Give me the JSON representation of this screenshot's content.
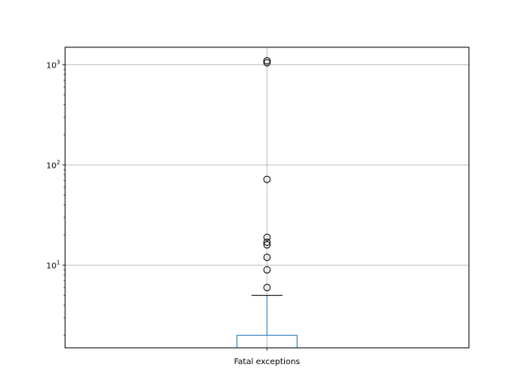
{
  "chart_data": {
    "type": "boxplot",
    "categories": [
      "Fatal exceptions"
    ],
    "yscale": "log",
    "ylim": [
      1.5,
      1500
    ],
    "yticks": [
      {
        "value": 10,
        "base": "10",
        "exp": "1"
      },
      {
        "value": 100,
        "base": "10",
        "exp": "2"
      },
      {
        "value": 1000,
        "base": "10",
        "exp": "3"
      }
    ],
    "grid": true,
    "box": {
      "q1": 1.0,
      "median": 1.0,
      "q3": 2.0,
      "whisker_low": 1.0,
      "whisker_high": 5.0
    },
    "outliers": [
      6,
      9,
      12,
      16,
      17,
      19,
      72,
      1050,
      1100
    ],
    "colors": {
      "box": "#1f77b4",
      "whisker": "#000000",
      "grid": "#b0b0b0",
      "outlier_edge": "#000000"
    }
  }
}
